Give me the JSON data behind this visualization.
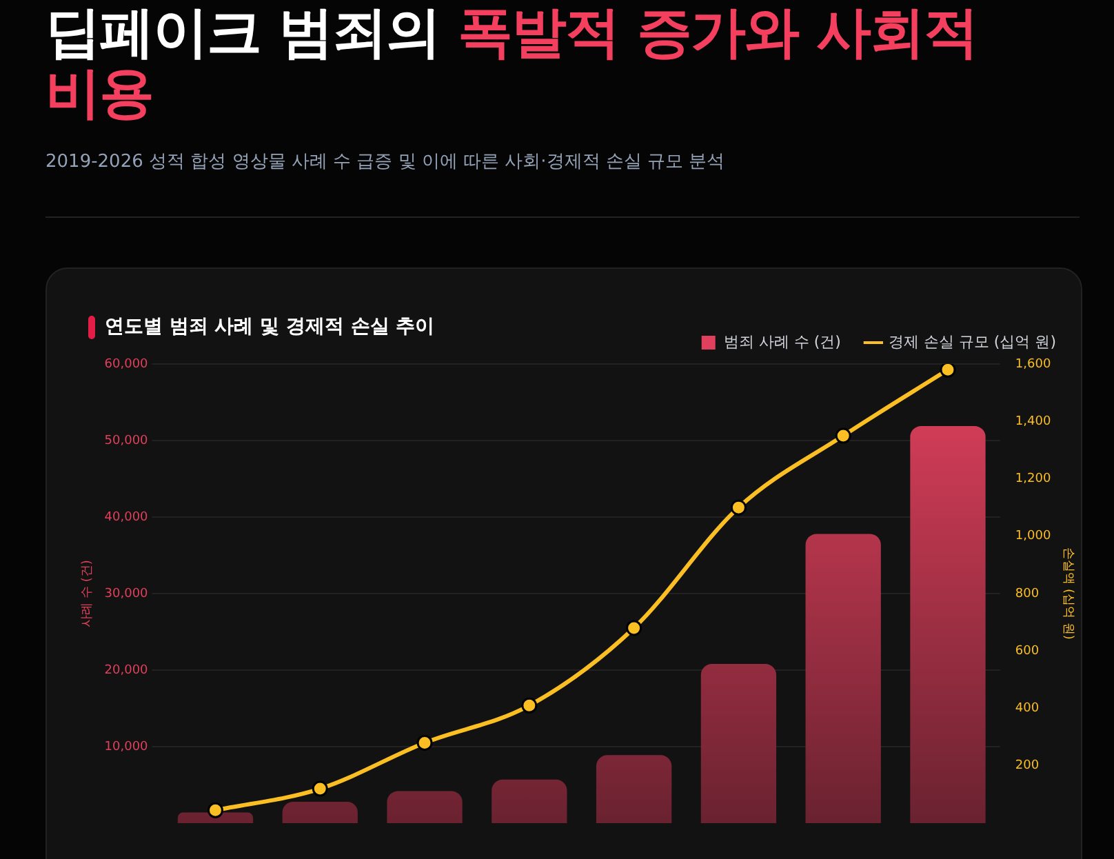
{
  "chart_data": {
    "type": "bar",
    "title": "딥페이크 범죄의 폭발적 증가와 사회적 비용",
    "subtitle": "2019-2026 성적 합성 영상물 사례 수 급증 및 이에 따른 사회·경제적 손실 규모 분석",
    "annotations": [
      "연도별 범죄 사례 및 경제적 손실 추이"
    ],
    "categories": [
      null,
      null,
      null,
      null,
      null,
      null,
      null,
      null
    ],
    "series": [
      {
        "name": "범죄 사례 수 (건)",
        "color": "#e0405c",
        "values": [
          1400,
          2800,
          4200,
          5700,
          8900,
          20800,
          37800,
          51900
        ]
      },
      {
        "name": "경제 손실 규모 (십억 원)",
        "type": "line",
        "axis": "y2",
        "color": "#fbbf24",
        "values": [
          45,
          120,
          280,
          410,
          680,
          1100,
          1350,
          1580
        ]
      }
    ],
    "ylabel": "사례 수 (건)",
    "y2label": "손실액 (십억 원)",
    "ylim": [
      0,
      60000
    ],
    "yticks": [
      {
        "value": 10000,
        "label": "10,000"
      },
      {
        "value": 20000,
        "label": "20,000"
      },
      {
        "value": 30000,
        "label": "30,000"
      },
      {
        "value": 40000,
        "label": "40,000"
      },
      {
        "value": 50000,
        "label": "50,000"
      },
      {
        "value": 60000,
        "label": "60,000"
      }
    ],
    "y2lim": [
      0,
      1600
    ],
    "y2ticks": [
      200,
      400,
      600,
      800,
      {
        "value": 1000,
        "label": "1,000"
      },
      {
        "value": 1200,
        "label": "1,200"
      },
      {
        "value": 1400,
        "label": "1,400"
      },
      {
        "value": 1600,
        "label": "1,600"
      }
    ],
    "tick_labels": "y",
    "grid": "y",
    "legend": "top right",
    "marker": "circle",
    "line_style": "solid"
  }
}
